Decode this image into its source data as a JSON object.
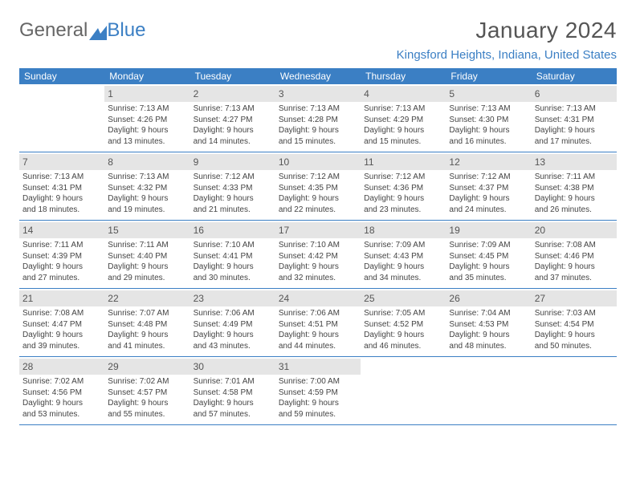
{
  "logo": {
    "part1": "General",
    "part2": "Blue"
  },
  "title": "January 2024",
  "location": "Kingsford Heights, Indiana, United States",
  "colors": {
    "header_bg": "#3b7fc4",
    "daynum_bg": "#e5e5e5",
    "rule": "#3b7fc4",
    "text": "#444444",
    "title": "#555555"
  },
  "weekdays": [
    "Sunday",
    "Monday",
    "Tuesday",
    "Wednesday",
    "Thursday",
    "Friday",
    "Saturday"
  ],
  "weeks": [
    [
      {
        "empty": true
      },
      {
        "n": "1",
        "sr": "Sunrise: 7:13 AM",
        "ss": "Sunset: 4:26 PM",
        "d1": "Daylight: 9 hours",
        "d2": "and 13 minutes."
      },
      {
        "n": "2",
        "sr": "Sunrise: 7:13 AM",
        "ss": "Sunset: 4:27 PM",
        "d1": "Daylight: 9 hours",
        "d2": "and 14 minutes."
      },
      {
        "n": "3",
        "sr": "Sunrise: 7:13 AM",
        "ss": "Sunset: 4:28 PM",
        "d1": "Daylight: 9 hours",
        "d2": "and 15 minutes."
      },
      {
        "n": "4",
        "sr": "Sunrise: 7:13 AM",
        "ss": "Sunset: 4:29 PM",
        "d1": "Daylight: 9 hours",
        "d2": "and 15 minutes."
      },
      {
        "n": "5",
        "sr": "Sunrise: 7:13 AM",
        "ss": "Sunset: 4:30 PM",
        "d1": "Daylight: 9 hours",
        "d2": "and 16 minutes."
      },
      {
        "n": "6",
        "sr": "Sunrise: 7:13 AM",
        "ss": "Sunset: 4:31 PM",
        "d1": "Daylight: 9 hours",
        "d2": "and 17 minutes."
      }
    ],
    [
      {
        "n": "7",
        "sr": "Sunrise: 7:13 AM",
        "ss": "Sunset: 4:31 PM",
        "d1": "Daylight: 9 hours",
        "d2": "and 18 minutes."
      },
      {
        "n": "8",
        "sr": "Sunrise: 7:13 AM",
        "ss": "Sunset: 4:32 PM",
        "d1": "Daylight: 9 hours",
        "d2": "and 19 minutes."
      },
      {
        "n": "9",
        "sr": "Sunrise: 7:12 AM",
        "ss": "Sunset: 4:33 PM",
        "d1": "Daylight: 9 hours",
        "d2": "and 21 minutes."
      },
      {
        "n": "10",
        "sr": "Sunrise: 7:12 AM",
        "ss": "Sunset: 4:35 PM",
        "d1": "Daylight: 9 hours",
        "d2": "and 22 minutes."
      },
      {
        "n": "11",
        "sr": "Sunrise: 7:12 AM",
        "ss": "Sunset: 4:36 PM",
        "d1": "Daylight: 9 hours",
        "d2": "and 23 minutes."
      },
      {
        "n": "12",
        "sr": "Sunrise: 7:12 AM",
        "ss": "Sunset: 4:37 PM",
        "d1": "Daylight: 9 hours",
        "d2": "and 24 minutes."
      },
      {
        "n": "13",
        "sr": "Sunrise: 7:11 AM",
        "ss": "Sunset: 4:38 PM",
        "d1": "Daylight: 9 hours",
        "d2": "and 26 minutes."
      }
    ],
    [
      {
        "n": "14",
        "sr": "Sunrise: 7:11 AM",
        "ss": "Sunset: 4:39 PM",
        "d1": "Daylight: 9 hours",
        "d2": "and 27 minutes."
      },
      {
        "n": "15",
        "sr": "Sunrise: 7:11 AM",
        "ss": "Sunset: 4:40 PM",
        "d1": "Daylight: 9 hours",
        "d2": "and 29 minutes."
      },
      {
        "n": "16",
        "sr": "Sunrise: 7:10 AM",
        "ss": "Sunset: 4:41 PM",
        "d1": "Daylight: 9 hours",
        "d2": "and 30 minutes."
      },
      {
        "n": "17",
        "sr": "Sunrise: 7:10 AM",
        "ss": "Sunset: 4:42 PM",
        "d1": "Daylight: 9 hours",
        "d2": "and 32 minutes."
      },
      {
        "n": "18",
        "sr": "Sunrise: 7:09 AM",
        "ss": "Sunset: 4:43 PM",
        "d1": "Daylight: 9 hours",
        "d2": "and 34 minutes."
      },
      {
        "n": "19",
        "sr": "Sunrise: 7:09 AM",
        "ss": "Sunset: 4:45 PM",
        "d1": "Daylight: 9 hours",
        "d2": "and 35 minutes."
      },
      {
        "n": "20",
        "sr": "Sunrise: 7:08 AM",
        "ss": "Sunset: 4:46 PM",
        "d1": "Daylight: 9 hours",
        "d2": "and 37 minutes."
      }
    ],
    [
      {
        "n": "21",
        "sr": "Sunrise: 7:08 AM",
        "ss": "Sunset: 4:47 PM",
        "d1": "Daylight: 9 hours",
        "d2": "and 39 minutes."
      },
      {
        "n": "22",
        "sr": "Sunrise: 7:07 AM",
        "ss": "Sunset: 4:48 PM",
        "d1": "Daylight: 9 hours",
        "d2": "and 41 minutes."
      },
      {
        "n": "23",
        "sr": "Sunrise: 7:06 AM",
        "ss": "Sunset: 4:49 PM",
        "d1": "Daylight: 9 hours",
        "d2": "and 43 minutes."
      },
      {
        "n": "24",
        "sr": "Sunrise: 7:06 AM",
        "ss": "Sunset: 4:51 PM",
        "d1": "Daylight: 9 hours",
        "d2": "and 44 minutes."
      },
      {
        "n": "25",
        "sr": "Sunrise: 7:05 AM",
        "ss": "Sunset: 4:52 PM",
        "d1": "Daylight: 9 hours",
        "d2": "and 46 minutes."
      },
      {
        "n": "26",
        "sr": "Sunrise: 7:04 AM",
        "ss": "Sunset: 4:53 PM",
        "d1": "Daylight: 9 hours",
        "d2": "and 48 minutes."
      },
      {
        "n": "27",
        "sr": "Sunrise: 7:03 AM",
        "ss": "Sunset: 4:54 PM",
        "d1": "Daylight: 9 hours",
        "d2": "and 50 minutes."
      }
    ],
    [
      {
        "n": "28",
        "sr": "Sunrise: 7:02 AM",
        "ss": "Sunset: 4:56 PM",
        "d1": "Daylight: 9 hours",
        "d2": "and 53 minutes."
      },
      {
        "n": "29",
        "sr": "Sunrise: 7:02 AM",
        "ss": "Sunset: 4:57 PM",
        "d1": "Daylight: 9 hours",
        "d2": "and 55 minutes."
      },
      {
        "n": "30",
        "sr": "Sunrise: 7:01 AM",
        "ss": "Sunset: 4:58 PM",
        "d1": "Daylight: 9 hours",
        "d2": "and 57 minutes."
      },
      {
        "n": "31",
        "sr": "Sunrise: 7:00 AM",
        "ss": "Sunset: 4:59 PM",
        "d1": "Daylight: 9 hours",
        "d2": "and 59 minutes."
      },
      {
        "empty": true
      },
      {
        "empty": true
      },
      {
        "empty": true
      }
    ]
  ]
}
